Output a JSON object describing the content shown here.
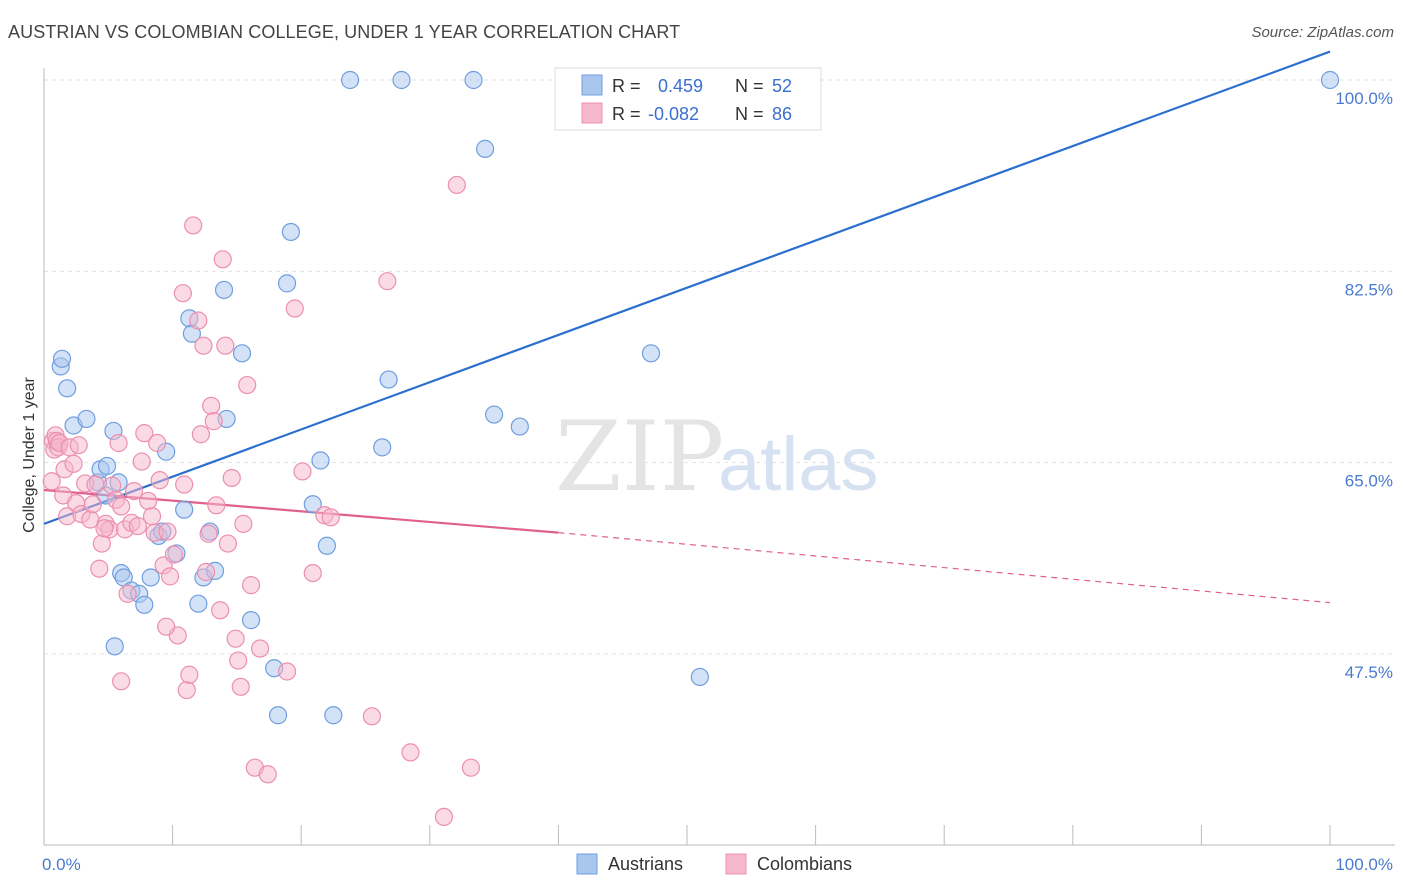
{
  "header": {
    "title": "AUSTRIAN VS COLOMBIAN COLLEGE, UNDER 1 YEAR CORRELATION CHART",
    "source": "Source: ZipAtlas.com"
  },
  "watermark": {
    "zip": "ZIP",
    "atlas": "atlas"
  },
  "colors": {
    "austrians_fill": "#a9c6ef",
    "austrians_stroke": "#6f9ee0",
    "austrians_line": "#2b6fcf",
    "colombians_fill": "#f6b8cb",
    "colombians_stroke": "#ec8fae",
    "colombians_line": "#e0608e",
    "tick_label": "#4a7bd0"
  },
  "legend": {
    "items": [
      {
        "r_label": "R =",
        "r_value": "0.459",
        "n_label": "N =",
        "n_value": "52"
      },
      {
        "r_label": "R =",
        "r_value": "-0.082",
        "n_label": "N =",
        "n_value": "86"
      }
    ]
  },
  "chart_data": {
    "type": "scatter",
    "title": "AUSTRIAN VS COLOMBIAN COLLEGE, UNDER 1 YEAR CORRELATION CHART",
    "xlabel": "",
    "ylabel": "College, Under 1 year",
    "xlim": [
      0,
      100
    ],
    "ylim": [
      32,
      102
    ],
    "x_tick_labels": [
      {
        "value": 0,
        "label": "0.0%"
      },
      {
        "value": 100,
        "label": "100.0%"
      }
    ],
    "y_tick_labels": [
      {
        "value": 100,
        "label": "100.0%"
      },
      {
        "value": 82.5,
        "label": "82.5%"
      },
      {
        "value": 65,
        "label": "65.0%"
      },
      {
        "value": 47.5,
        "label": "47.5%"
      }
    ],
    "grid": true,
    "legend_position": "top-center",
    "series": [
      {
        "name": "Austrians",
        "points": [
          [
            1.3,
            73.8
          ],
          [
            1.4,
            74.5
          ],
          [
            1.8,
            71.8
          ],
          [
            2.3,
            68.4
          ],
          [
            3.3,
            69.0
          ],
          [
            4.2,
            63.2
          ],
          [
            4.4,
            64.4
          ],
          [
            4.8,
            62.0
          ],
          [
            4.9,
            64.7
          ],
          [
            5.4,
            67.9
          ],
          [
            5.5,
            48.2
          ],
          [
            5.8,
            63.2
          ],
          [
            6.0,
            54.9
          ],
          [
            6.2,
            54.5
          ],
          [
            6.8,
            53.3
          ],
          [
            7.4,
            53.0
          ],
          [
            7.8,
            52.0
          ],
          [
            8.3,
            54.5
          ],
          [
            8.9,
            58.3
          ],
          [
            9.2,
            58.7
          ],
          [
            9.5,
            66.0
          ],
          [
            10.3,
            56.7
          ],
          [
            10.9,
            60.7
          ],
          [
            11.3,
            78.2
          ],
          [
            11.5,
            76.8
          ],
          [
            12.0,
            52.1
          ],
          [
            12.4,
            54.5
          ],
          [
            12.9,
            58.7
          ],
          [
            13.3,
            55.1
          ],
          [
            14.0,
            80.8
          ],
          [
            14.2,
            69.0
          ],
          [
            15.4,
            75.0
          ],
          [
            16.1,
            50.6
          ],
          [
            17.9,
            46.2
          ],
          [
            18.2,
            41.9
          ],
          [
            18.9,
            81.4
          ],
          [
            19.2,
            86.1
          ],
          [
            20.9,
            61.2
          ],
          [
            21.5,
            65.2
          ],
          [
            22.0,
            57.4
          ],
          [
            22.5,
            41.9
          ],
          [
            23.8,
            100.0
          ],
          [
            26.3,
            66.4
          ],
          [
            26.8,
            72.6
          ],
          [
            27.8,
            100.0
          ],
          [
            33.4,
            100.0
          ],
          [
            34.3,
            93.7
          ],
          [
            35.0,
            69.4
          ],
          [
            37.0,
            68.3
          ],
          [
            47.2,
            75.0
          ],
          [
            51.0,
            45.4
          ],
          [
            100.0,
            100.0
          ]
        ]
      },
      {
        "name": "Colombians",
        "points": [
          [
            0.6,
            63.3
          ],
          [
            0.7,
            67.0
          ],
          [
            0.8,
            66.2
          ],
          [
            0.9,
            67.5
          ],
          [
            1.0,
            67.0
          ],
          [
            1.1,
            66.4
          ],
          [
            1.2,
            66.8
          ],
          [
            1.5,
            62.0
          ],
          [
            1.6,
            64.4
          ],
          [
            1.8,
            60.1
          ],
          [
            2.0,
            66.4
          ],
          [
            2.3,
            64.9
          ],
          [
            2.5,
            61.3
          ],
          [
            2.7,
            66.6
          ],
          [
            2.9,
            60.3
          ],
          [
            3.2,
            63.1
          ],
          [
            3.6,
            59.8
          ],
          [
            3.8,
            61.2
          ],
          [
            4.0,
            63.0
          ],
          [
            4.3,
            55.3
          ],
          [
            4.5,
            57.6
          ],
          [
            4.8,
            59.4
          ],
          [
            5.1,
            58.9
          ],
          [
            5.3,
            62.9
          ],
          [
            5.6,
            61.6
          ],
          [
            5.8,
            66.8
          ],
          [
            6.0,
            61.0
          ],
          [
            6.3,
            58.9
          ],
          [
            6.5,
            53.0
          ],
          [
            6.8,
            59.5
          ],
          [
            7.0,
            62.4
          ],
          [
            7.3,
            59.2
          ],
          [
            7.6,
            65.1
          ],
          [
            7.8,
            67.7
          ],
          [
            8.1,
            61.5
          ],
          [
            8.4,
            60.1
          ],
          [
            8.6,
            58.6
          ],
          [
            8.8,
            66.8
          ],
          [
            9.0,
            63.4
          ],
          [
            9.3,
            55.6
          ],
          [
            9.6,
            58.7
          ],
          [
            9.8,
            54.6
          ],
          [
            10.1,
            56.6
          ],
          [
            10.4,
            49.2
          ],
          [
            10.8,
            80.5
          ],
          [
            10.9,
            63.0
          ],
          [
            11.1,
            44.2
          ],
          [
            11.3,
            45.6
          ],
          [
            11.6,
            86.7
          ],
          [
            12.0,
            78.0
          ],
          [
            12.2,
            67.6
          ],
          [
            12.4,
            75.7
          ],
          [
            12.6,
            55.0
          ],
          [
            12.8,
            58.5
          ],
          [
            13.0,
            70.2
          ],
          [
            13.2,
            68.8
          ],
          [
            13.4,
            61.1
          ],
          [
            13.7,
            51.5
          ],
          [
            13.9,
            83.6
          ],
          [
            14.1,
            75.7
          ],
          [
            14.3,
            57.6
          ],
          [
            14.6,
            63.6
          ],
          [
            14.9,
            48.9
          ],
          [
            15.1,
            46.9
          ],
          [
            15.3,
            44.5
          ],
          [
            15.5,
            59.4
          ],
          [
            15.8,
            72.1
          ],
          [
            16.1,
            53.8
          ],
          [
            16.4,
            37.1
          ],
          [
            16.8,
            48.0
          ],
          [
            17.4,
            36.5
          ],
          [
            18.9,
            45.9
          ],
          [
            19.5,
            79.1
          ],
          [
            20.1,
            64.2
          ],
          [
            20.9,
            54.9
          ],
          [
            21.8,
            60.2
          ],
          [
            22.3,
            60.0
          ],
          [
            25.5,
            41.8
          ],
          [
            26.7,
            81.6
          ],
          [
            28.5,
            38.5
          ],
          [
            31.1,
            32.6
          ],
          [
            32.1,
            90.4
          ],
          [
            33.2,
            37.1
          ],
          [
            9.5,
            50.0
          ],
          [
            6.0,
            45.0
          ],
          [
            4.7,
            59.0
          ]
        ]
      }
    ],
    "trendlines": [
      {
        "series": "Austrians",
        "from": [
          0,
          59.4
        ],
        "to": [
          100,
          102.6
        ]
      },
      {
        "series": "Colombians",
        "from": [
          0,
          62.5
        ],
        "to": [
          40,
          58.6
        ],
        "dashed_extension_to": [
          100,
          52.2
        ]
      }
    ]
  },
  "bottom_legend": {
    "items": [
      {
        "label": "Austrians"
      },
      {
        "label": "Colombians"
      }
    ]
  }
}
